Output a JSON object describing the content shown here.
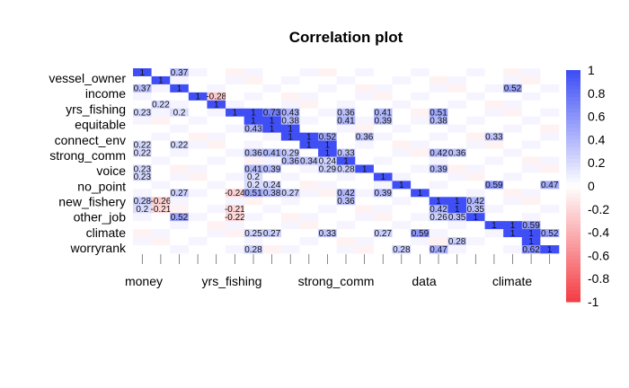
{
  "chart_data": {
    "type": "heatmap",
    "title": "Correlation plot",
    "variables": [
      "vessel_owner",
      "income",
      "yrs_fishing",
      "equitable",
      "connect_env",
      "strong_comm",
      "voice",
      "no_point",
      "new_fishery",
      "other_job",
      "climate",
      "worryrank"
    ],
    "row_labels": [
      "vessel_owner",
      "income",
      "yrs_fishing",
      "equitable",
      "connect_env",
      "strong_comm",
      "voice",
      "no_point",
      "new_fishery",
      "other_job",
      "climate",
      "worryrank"
    ],
    "column_labels": [
      "money",
      "yrs_fishing",
      "strong_comm",
      "data",
      "climate"
    ],
    "cells": [
      {
        "r": 0,
        "c": 0,
        "v": 1
      },
      {
        "r": 0,
        "c": 2,
        "v": 0.37
      },
      {
        "r": 1,
        "c": 1,
        "v": 1
      },
      {
        "r": 2,
        "c": 0,
        "v": 0.37
      },
      {
        "r": 2,
        "c": 2,
        "v": 1
      },
      {
        "r": 2,
        "c": 20,
        "v": 0.52
      },
      {
        "r": 3,
        "c": 3,
        "v": 1
      },
      {
        "r": 3,
        "c": 4,
        "v": -0.28
      },
      {
        "r": 4,
        "c": 4,
        "v": 1
      },
      {
        "r": 4,
        "c": 1,
        "v": 0.22
      },
      {
        "r": 5,
        "c": 0,
        "v": 0.23
      },
      {
        "r": 5,
        "c": 2,
        "v": 0.2
      },
      {
        "r": 5,
        "c": 6,
        "v": 1
      },
      {
        "r": 5,
        "c": 7,
        "v": 0.73
      },
      {
        "r": 5,
        "c": 8,
        "v": 0.43
      },
      {
        "r": 5,
        "c": 11,
        "v": 0.36
      },
      {
        "r": 5,
        "c": 13,
        "v": 0.41
      },
      {
        "r": 5,
        "c": 16,
        "v": 0.51
      },
      {
        "r": 6,
        "c": 6,
        "v": 0.73
      },
      {
        "r": 6,
        "c": 7,
        "v": 1
      },
      {
        "r": 6,
        "c": 8,
        "v": 0.38
      },
      {
        "r": 6,
        "c": 11,
        "v": 0.41
      },
      {
        "r": 6,
        "c": 13,
        "v": 0.39
      },
      {
        "r": 6,
        "c": 16,
        "v": 0.38
      },
      {
        "r": 7,
        "c": 6,
        "v": 0.43
      },
      {
        "r": 7,
        "c": 7,
        "v": 0.38
      },
      {
        "r": 7,
        "c": 8,
        "v": 1
      },
      {
        "r": 8,
        "c": 9,
        "v": 1
      },
      {
        "r": 8,
        "c": 10,
        "v": 0.52
      },
      {
        "r": 8,
        "c": 12,
        "v": 0.36
      },
      {
        "r": 8,
        "c": 19,
        "v": 0.33
      },
      {
        "r": 9,
        "c": 9,
        "v": 0.52
      },
      {
        "r": 9,
        "c": 10,
        "v": 1
      },
      {
        "r": 9,
        "c": 0,
        "v": 0.22
      },
      {
        "r": 9,
        "c": 2,
        "v": 0.22
      },
      {
        "r": 10,
        "c": 0,
        "v": 0.22
      },
      {
        "r": 10,
        "c": 6,
        "v": 0.36
      },
      {
        "r": 10,
        "c": 7,
        "v": 0.41
      },
      {
        "r": 10,
        "c": 8,
        "v": 0.29
      },
      {
        "r": 10,
        "c": 11,
        "v": 0.33
      },
      {
        "r": 10,
        "c": 16,
        "v": 0.42
      },
      {
        "r": 10,
        "c": 17,
        "v": 0.36
      },
      {
        "r": 11,
        "c": 8,
        "v": 0.36
      },
      {
        "r": 11,
        "c": 9,
        "v": 0.34
      },
      {
        "r": 11,
        "c": 10,
        "v": 0.24
      },
      {
        "r": 11,
        "c": 11,
        "v": 1
      },
      {
        "r": 12,
        "c": 0,
        "v": 0.23
      },
      {
        "r": 12,
        "c": 6,
        "v": 0.41
      },
      {
        "r": 12,
        "c": 7,
        "v": 0.39
      },
      {
        "r": 12,
        "c": 10,
        "v": 0.29
      },
      {
        "r": 12,
        "c": 11,
        "v": 0.28
      },
      {
        "r": 12,
        "c": 12,
        "v": 1
      },
      {
        "r": 12,
        "c": 16,
        "v": 0.39
      },
      {
        "r": 13,
        "c": 0,
        "v": 0.23
      },
      {
        "r": 13,
        "c": 6,
        "v": 0.2
      },
      {
        "r": 13,
        "c": 13,
        "v": 1
      },
      {
        "r": 14,
        "c": 6,
        "v": 0.2
      },
      {
        "r": 14,
        "c": 7,
        "v": 0.24
      },
      {
        "r": 14,
        "c": 14,
        "v": 1
      },
      {
        "r": 14,
        "c": 19,
        "v": 0.59
      },
      {
        "r": 14,
        "c": 22,
        "v": 0.47
      },
      {
        "r": 15,
        "c": 2,
        "v": 0.27
      },
      {
        "r": 15,
        "c": 5,
        "v": -0.24
      },
      {
        "r": 15,
        "c": 6,
        "v": 0.51
      },
      {
        "r": 15,
        "c": 7,
        "v": 0.38
      },
      {
        "r": 15,
        "c": 8,
        "v": 0.27
      },
      {
        "r": 15,
        "c": 11,
        "v": 0.42
      },
      {
        "r": 15,
        "c": 13,
        "v": 0.39
      },
      {
        "r": 15,
        "c": 15,
        "v": 1
      },
      {
        "r": 16,
        "c": 0,
        "v": 0.28
      },
      {
        "r": 16,
        "c": 1,
        "v": -0.26
      },
      {
        "r": 16,
        "c": 11,
        "v": 0.36
      },
      {
        "r": 16,
        "c": 16,
        "v": 0.27
      },
      {
        "r": 16,
        "c": 17,
        "v": 1
      },
      {
        "r": 16,
        "c": 18,
        "v": 0.42
      },
      {
        "r": 17,
        "c": 0,
        "v": 0.2
      },
      {
        "r": 17,
        "c": 1,
        "v": -0.21
      },
      {
        "r": 17,
        "c": 5,
        "v": -0.21
      },
      {
        "r": 17,
        "c": 16,
        "v": 0.42
      },
      {
        "r": 17,
        "c": 17,
        "v": 1
      },
      {
        "r": 17,
        "c": 18,
        "v": 0.35
      },
      {
        "r": 18,
        "c": 2,
        "v": 0.52
      },
      {
        "r": 18,
        "c": 5,
        "v": -0.22
      },
      {
        "r": 18,
        "c": 16,
        "v": 0.26
      },
      {
        "r": 18,
        "c": 17,
        "v": 0.35
      },
      {
        "r": 18,
        "c": 18,
        "v": 1
      },
      {
        "r": 19,
        "c": 20,
        "v": 1
      },
      {
        "r": 19,
        "c": 21,
        "v": 0.59
      },
      {
        "r": 20,
        "c": 6,
        "v": 0.25
      },
      {
        "r": 20,
        "c": 7,
        "v": 0.27
      },
      {
        "r": 20,
        "c": 10,
        "v": 0.33
      },
      {
        "r": 20,
        "c": 13,
        "v": 0.27
      },
      {
        "r": 20,
        "c": 15,
        "v": 0.59
      },
      {
        "r": 20,
        "c": 20,
        "v": 0.59
      },
      {
        "r": 20,
        "c": 21,
        "v": 1
      },
      {
        "r": 20,
        "c": 22,
        "v": 0.52
      },
      {
        "r": 21,
        "c": 17,
        "v": 0.28
      },
      {
        "r": 21,
        "c": 21,
        "v": 1
      },
      {
        "r": 22,
        "c": 6,
        "v": 0.28
      },
      {
        "r": 22,
        "c": 14,
        "v": 0.28
      },
      {
        "r": 22,
        "c": 16,
        "v": 0.47
      },
      {
        "r": 22,
        "c": 21,
        "v": 0.62
      },
      {
        "r": 22,
        "c": 22,
        "v": 1
      }
    ],
    "colorbar": {
      "min": -1,
      "max": 1,
      "ticks": [
        "1",
        "0.8",
        "0.6",
        "0.4",
        "0.2",
        "0",
        "-0.2",
        "-0.4",
        "-0.6",
        "-0.8",
        "-1"
      ]
    },
    "colors": {
      "positive": "#3f4ff5",
      "negative": "#f43f46",
      "neutral": "#ffffff"
    }
  }
}
